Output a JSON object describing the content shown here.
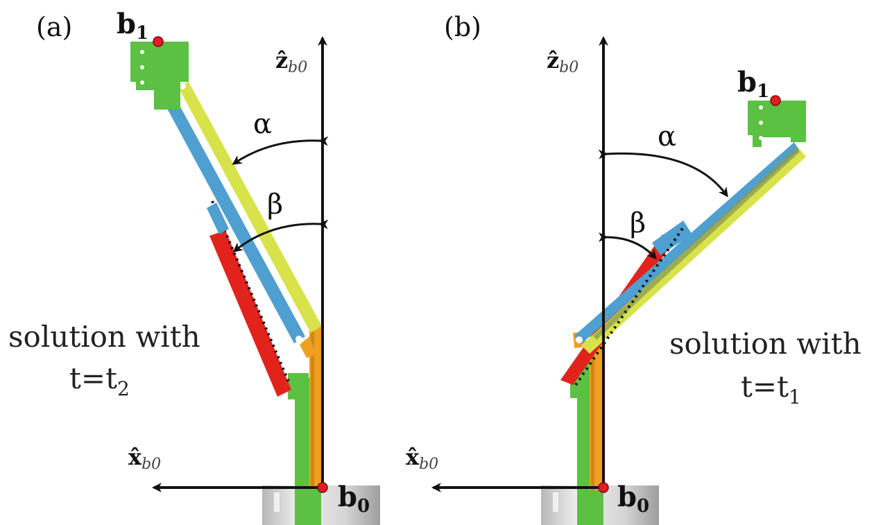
{
  "panels": {
    "a": {
      "label": "(a)",
      "b1_main": "b",
      "b1_sub": "1",
      "b0_main": "b",
      "b0_sub": "0",
      "z_axis_main": "ẑ",
      "z_axis_sub": "b0",
      "x_axis_main": "x̂",
      "x_axis_sub": "b0",
      "alpha": "α",
      "beta": "β",
      "caption_line1": "solution with",
      "caption_line2_main": "t=t",
      "caption_line2_sub": "2"
    },
    "b": {
      "label": "(b)",
      "b1_main": "b",
      "b1_sub": "1",
      "b0_main": "b",
      "b0_sub": "0",
      "z_axis_main": "ẑ",
      "z_axis_sub": "b0",
      "x_axis_main": "x̂",
      "x_axis_sub": "b0",
      "alpha": "α",
      "beta": "β",
      "caption_line1": "solution with",
      "caption_line2_main": "t=t",
      "caption_line2_sub": "1"
    }
  },
  "colors": {
    "green_link": "#5cc043",
    "blue_link": "#4f9fd0",
    "yellow_link": "#d8e24a",
    "red_link": "#e2231c",
    "orange_link": "#f0a020",
    "point_red": "#e51b23",
    "axis": "#111111",
    "base_gray": "#cfcfcf"
  }
}
